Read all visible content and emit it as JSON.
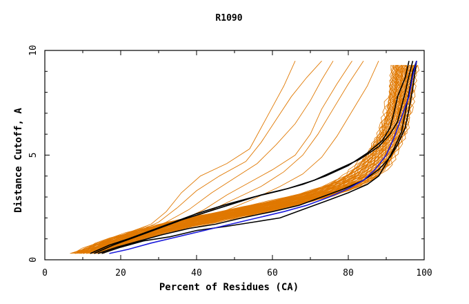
{
  "chart_data": {
    "type": "line",
    "title": "R1090",
    "xlabel": "Percent of Residues (CA)",
    "ylabel": "Distance Cutoff, A",
    "xlim": [
      0,
      100
    ],
    "ylim": [
      0,
      10
    ],
    "x_ticks": [
      "0",
      "20",
      "40",
      "60",
      "80",
      "100"
    ],
    "y_ticks": [
      "0",
      "5",
      "10"
    ],
    "grid": false,
    "colors": {
      "orange": "#e07800",
      "black": "#000000",
      "blue": "#1a1adb",
      "axis": "#000000"
    },
    "background_band": {
      "color": "orange",
      "lower": [
        [
          7,
          0.3
        ],
        [
          11,
          0.6
        ],
        [
          15,
          0.9
        ],
        [
          20,
          1.2
        ],
        [
          26,
          1.5
        ],
        [
          33,
          1.8
        ],
        [
          41,
          2.1
        ],
        [
          49,
          2.4
        ],
        [
          57,
          2.7
        ],
        [
          64,
          3.0
        ],
        [
          70,
          3.3
        ],
        [
          75,
          3.6
        ],
        [
          79,
          4.0
        ],
        [
          83,
          4.6
        ],
        [
          86,
          5.3
        ],
        [
          88,
          6.0
        ],
        [
          90,
          7.0
        ],
        [
          91,
          8.0
        ],
        [
          92,
          9.5
        ]
      ],
      "upper": [
        [
          15,
          0.3
        ],
        [
          19,
          0.6
        ],
        [
          24,
          0.9
        ],
        [
          30,
          1.2
        ],
        [
          37,
          1.5
        ],
        [
          45,
          1.8
        ],
        [
          53,
          2.1
        ],
        [
          61,
          2.4
        ],
        [
          68,
          2.7
        ],
        [
          75,
          3.0
        ],
        [
          80,
          3.3
        ],
        [
          84,
          3.6
        ],
        [
          88,
          4.0
        ],
        [
          91,
          4.6
        ],
        [
          93,
          5.3
        ],
        [
          95,
          6.0
        ],
        [
          96,
          7.0
        ],
        [
          97,
          8.0
        ],
        [
          98,
          9.5
        ]
      ],
      "count": 55
    },
    "series": [
      {
        "color": "orange",
        "points": [
          [
            8,
            0.3
          ],
          [
            15,
            0.8
          ],
          [
            22,
            1.3
          ],
          [
            28,
            1.7
          ],
          [
            32,
            2.3
          ],
          [
            36,
            3.2
          ],
          [
            41,
            4.0
          ],
          [
            48,
            4.6
          ],
          [
            54,
            5.3
          ],
          [
            57,
            6.3
          ],
          [
            60,
            7.3
          ],
          [
            63,
            8.3
          ],
          [
            66,
            9.5
          ]
        ]
      },
      {
        "color": "orange",
        "points": [
          [
            9,
            0.3
          ],
          [
            16,
            0.8
          ],
          [
            24,
            1.3
          ],
          [
            30,
            1.8
          ],
          [
            35,
            2.5
          ],
          [
            40,
            3.3
          ],
          [
            46,
            4.0
          ],
          [
            53,
            4.7
          ],
          [
            57,
            5.6
          ],
          [
            61,
            6.7
          ],
          [
            65,
            7.8
          ],
          [
            69,
            8.7
          ],
          [
            73,
            9.5
          ]
        ]
      },
      {
        "color": "orange",
        "points": [
          [
            10,
            0.3
          ],
          [
            17,
            0.8
          ],
          [
            25,
            1.3
          ],
          [
            32,
            1.8
          ],
          [
            38,
            2.4
          ],
          [
            44,
            3.2
          ],
          [
            50,
            3.9
          ],
          [
            56,
            4.6
          ],
          [
            61,
            5.5
          ],
          [
            66,
            6.5
          ],
          [
            70,
            7.6
          ],
          [
            73,
            8.6
          ],
          [
            76,
            9.5
          ]
        ]
      },
      {
        "color": "orange",
        "points": [
          [
            11,
            0.3
          ],
          [
            18,
            0.8
          ],
          [
            27,
            1.3
          ],
          [
            35,
            1.8
          ],
          [
            42,
            2.4
          ],
          [
            48,
            3.1
          ],
          [
            54,
            3.7
          ],
          [
            60,
            4.3
          ],
          [
            66,
            5.0
          ],
          [
            70,
            6.0
          ],
          [
            73,
            7.2
          ],
          [
            77,
            8.4
          ],
          [
            81,
            9.5
          ]
        ]
      },
      {
        "color": "orange",
        "points": [
          [
            12,
            0.3
          ],
          [
            19,
            0.8
          ],
          [
            28,
            1.3
          ],
          [
            36,
            1.8
          ],
          [
            43,
            2.3
          ],
          [
            50,
            2.9
          ],
          [
            57,
            3.5
          ],
          [
            63,
            4.2
          ],
          [
            68,
            5.0
          ],
          [
            72,
            6.0
          ],
          [
            76,
            7.2
          ],
          [
            80,
            8.4
          ],
          [
            84,
            9.5
          ]
        ]
      },
      {
        "color": "orange",
        "points": [
          [
            13,
            0.3
          ],
          [
            21,
            0.8
          ],
          [
            30,
            1.3
          ],
          [
            39,
            1.8
          ],
          [
            47,
            2.3
          ],
          [
            55,
            2.9
          ],
          [
            62,
            3.5
          ],
          [
            68,
            4.1
          ],
          [
            73,
            4.9
          ],
          [
            77,
            5.9
          ],
          [
            81,
            7.1
          ],
          [
            85,
            8.3
          ],
          [
            88,
            9.5
          ]
        ]
      },
      {
        "color": "black",
        "points": [
          [
            12,
            0.3
          ],
          [
            17,
            0.7
          ],
          [
            22,
            1.0
          ],
          [
            28,
            1.4
          ],
          [
            34,
            1.8
          ],
          [
            40,
            2.2
          ],
          [
            47,
            2.6
          ],
          [
            55,
            3.0
          ],
          [
            62,
            3.3
          ],
          [
            68,
            3.6
          ],
          [
            74,
            4.0
          ],
          [
            80,
            4.5
          ],
          [
            85,
            5.1
          ],
          [
            89,
            5.7
          ],
          [
            91,
            6.3
          ],
          [
            92,
            7.0
          ],
          [
            93,
            7.8
          ],
          [
            95,
            8.7
          ],
          [
            96,
            9.5
          ]
        ]
      },
      {
        "color": "black",
        "points": [
          [
            13,
            0.3
          ],
          [
            18,
            0.7
          ],
          [
            24,
            1.1
          ],
          [
            30,
            1.5
          ],
          [
            36,
            1.9
          ],
          [
            43,
            2.3
          ],
          [
            50,
            2.7
          ],
          [
            57,
            3.1
          ],
          [
            64,
            3.4
          ],
          [
            71,
            3.8
          ],
          [
            77,
            4.3
          ],
          [
            83,
            4.8
          ],
          [
            88,
            5.4
          ],
          [
            91,
            6.0
          ],
          [
            93,
            6.6
          ],
          [
            94,
            7.3
          ],
          [
            95,
            8.0
          ],
          [
            96,
            8.8
          ],
          [
            97,
            9.5
          ]
        ]
      },
      {
        "color": "black",
        "points": [
          [
            15,
            0.3
          ],
          [
            20,
            0.6
          ],
          [
            26,
            0.9
          ],
          [
            33,
            1.1
          ],
          [
            40,
            1.4
          ],
          [
            48,
            1.6
          ],
          [
            55,
            1.8
          ],
          [
            62,
            2.0
          ],
          [
            68,
            2.4
          ],
          [
            74,
            2.8
          ],
          [
            80,
            3.2
          ],
          [
            85,
            3.6
          ],
          [
            88,
            4.0
          ],
          [
            90,
            4.6
          ],
          [
            92,
            5.3
          ],
          [
            94,
            6.1
          ],
          [
            95,
            7.0
          ],
          [
            96,
            8.0
          ],
          [
            97,
            9.0
          ],
          [
            98,
            9.5
          ]
        ]
      },
      {
        "color": "black",
        "points": [
          [
            14,
            0.3
          ],
          [
            19,
            0.6
          ],
          [
            25,
            0.9
          ],
          [
            31,
            1.2
          ],
          [
            38,
            1.5
          ],
          [
            45,
            1.7
          ],
          [
            52,
            2.0
          ],
          [
            60,
            2.3
          ],
          [
            67,
            2.6
          ],
          [
            73,
            3.0
          ],
          [
            79,
            3.4
          ],
          [
            84,
            3.8
          ],
          [
            88,
            4.3
          ],
          [
            91,
            4.9
          ],
          [
            93,
            5.5
          ],
          [
            95,
            6.3
          ],
          [
            96,
            7.2
          ],
          [
            97,
            8.2
          ],
          [
            98,
            9.5
          ]
        ]
      },
      {
        "color": "blue",
        "points": [
          [
            17,
            0.3
          ],
          [
            22,
            0.5
          ],
          [
            28,
            0.8
          ],
          [
            35,
            1.1
          ],
          [
            42,
            1.4
          ],
          [
            49,
            1.7
          ],
          [
            56,
            2.0
          ],
          [
            63,
            2.3
          ],
          [
            69,
            2.6
          ],
          [
            75,
            3.0
          ],
          [
            80,
            3.4
          ],
          [
            84,
            3.8
          ],
          [
            87,
            4.3
          ],
          [
            90,
            5.0
          ],
          [
            92,
            5.8
          ],
          [
            94,
            6.8
          ],
          [
            96,
            7.8
          ],
          [
            97,
            8.8
          ],
          [
            98,
            9.5
          ]
        ]
      }
    ]
  }
}
